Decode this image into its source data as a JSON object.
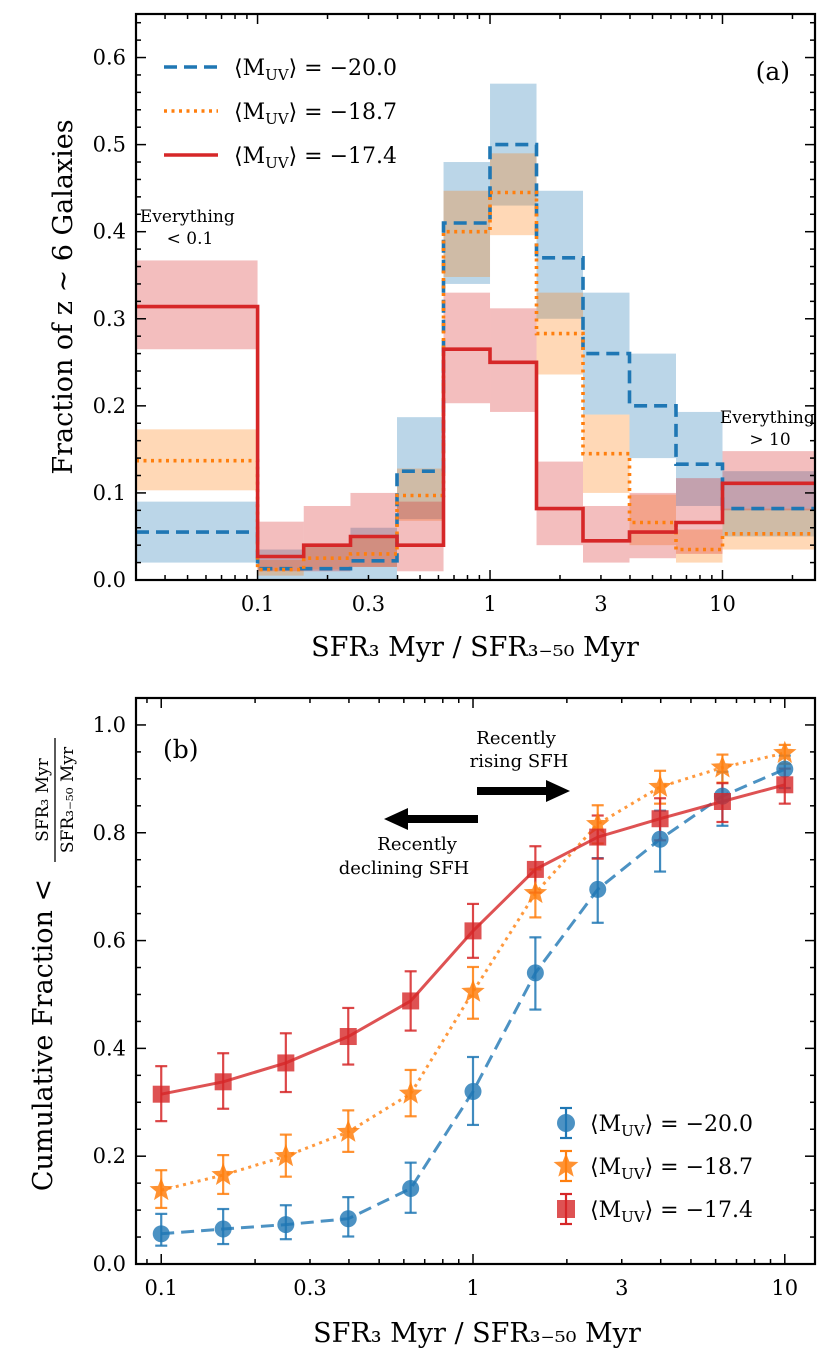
{
  "colors": {
    "blue": "#1f77b4",
    "orange": "#ff7f0e",
    "red": "#d62728"
  },
  "chart_data": [
    {
      "type": "bar",
      "subtype": "step-histogram-with-error-bands",
      "panel_label": "(a)",
      "xlabel": "SFR₃ Myr / SFR₃₋₅₀ Myr",
      "ylabel": "Fraction of z ∼ 6 Galaxies",
      "xscale": "log",
      "xlim": [
        0.03,
        25
      ],
      "ylim": [
        0,
        0.65
      ],
      "xticks": [
        0.1,
        0.3,
        1,
        3,
        10
      ],
      "xtick_labels": [
        "0.1",
        "0.3",
        "1",
        "3",
        "10"
      ],
      "yticks": [
        0.0,
        0.1,
        0.2,
        0.3,
        0.4,
        0.5,
        0.6
      ],
      "ytick_labels": [
        "0.0",
        "0.1",
        "0.2",
        "0.3",
        "0.4",
        "0.5",
        "0.6"
      ],
      "bin_edges": [
        0.03,
        0.1,
        0.158,
        0.251,
        0.398,
        0.631,
        1.0,
        1.585,
        2.512,
        3.981,
        6.31,
        10.0,
        25
      ],
      "series": [
        {
          "name": "⟨M_UV⟩ = −20.0",
          "legend_main": "⟨M",
          "legend_sub": "UV",
          "legend_tail": "⟩ = −20.0",
          "color": "#1f77b4",
          "linestyle": "dashed",
          "values": [
            0.055,
            0.013,
            0.013,
            0.022,
            0.125,
            0.41,
            0.5,
            0.37,
            0.26,
            0.2,
            0.133,
            0.082
          ],
          "lower": [
            0.02,
            0.0,
            0.0,
            0.0,
            0.07,
            0.34,
            0.43,
            0.3,
            0.19,
            0.14,
            0.085,
            0.05
          ],
          "upper": [
            0.09,
            0.035,
            0.04,
            0.06,
            0.187,
            0.48,
            0.57,
            0.447,
            0.33,
            0.26,
            0.193,
            0.125
          ]
        },
        {
          "name": "⟨M_UV⟩ = −18.7",
          "legend_main": "⟨M",
          "legend_sub": "UV",
          "legend_tail": "⟩ = −18.7",
          "color": "#ff7f0e",
          "linestyle": "dotted",
          "values": [
            0.137,
            0.012,
            0.025,
            0.03,
            0.097,
            0.4,
            0.445,
            0.283,
            0.145,
            0.066,
            0.035,
            0.053
          ],
          "lower": [
            0.103,
            0.005,
            0.012,
            0.015,
            0.068,
            0.348,
            0.396,
            0.236,
            0.1,
            0.04,
            0.02,
            0.035
          ],
          "upper": [
            0.173,
            0.023,
            0.04,
            0.05,
            0.128,
            0.447,
            0.49,
            0.33,
            0.19,
            0.098,
            0.058,
            0.082
          ]
        },
        {
          "name": "⟨M_UV⟩ = −17.4",
          "legend_main": "⟨M",
          "legend_sub": "UV",
          "legend_tail": "⟩ = −17.4",
          "color": "#d62728",
          "linestyle": "solid",
          "values": [
            0.314,
            0.027,
            0.04,
            0.05,
            0.04,
            0.265,
            0.25,
            0.082,
            0.045,
            0.055,
            0.066,
            0.111
          ],
          "lower": [
            0.265,
            0.01,
            0.01,
            0.015,
            0.01,
            0.203,
            0.193,
            0.04,
            0.02,
            0.025,
            0.03,
            0.08
          ],
          "upper": [
            0.367,
            0.067,
            0.085,
            0.1,
            0.09,
            0.33,
            0.312,
            0.136,
            0.085,
            0.1,
            0.117,
            0.148
          ]
        }
      ],
      "annotations": [
        {
          "id": "low",
          "lines": [
            "Everything",
            "< 0.1"
          ]
        },
        {
          "id": "high",
          "lines": [
            "Everything",
            "> 10"
          ]
        }
      ]
    },
    {
      "type": "line",
      "subtype": "cumulative-with-error-bars",
      "panel_label": "(b)",
      "xlabel": "SFR₃ Myr / SFR₃₋₅₀ Myr",
      "ylabel_prefix": "Cumulative Fraction <",
      "ylabel_num": "SFR₃ Myr",
      "ylabel_den": "SFR₃₋₅₀ Myr",
      "xscale": "log",
      "xlim": [
        0.083,
        12.5
      ],
      "ylim": [
        0,
        1.05
      ],
      "xticks": [
        0.1,
        0.3,
        1,
        3,
        10
      ],
      "xtick_labels": [
        "0.1",
        "0.3",
        "1",
        "3",
        "10"
      ],
      "yticks": [
        0.0,
        0.2,
        0.4,
        0.6,
        0.8,
        1.0
      ],
      "ytick_labels": [
        "0.0",
        "0.2",
        "0.4",
        "0.6",
        "0.8",
        "1.0"
      ],
      "series": [
        {
          "name": "⟨M_UV⟩ = −20.0",
          "legend_main": "⟨M",
          "legend_sub": "UV",
          "legend_tail": "⟩ = −20.0",
          "color": "#1f77b4",
          "linestyle": "dashed",
          "marker": "circle",
          "x": [
            0.1,
            0.158,
            0.251,
            0.398,
            0.631,
            1.0,
            1.585,
            2.512,
            3.981,
            6.31,
            10.0
          ],
          "y": [
            0.056,
            0.065,
            0.073,
            0.084,
            0.14,
            0.32,
            0.54,
            0.695,
            0.788,
            0.868,
            0.918
          ],
          "yerr_low": [
            0.022,
            0.028,
            0.027,
            0.033,
            0.045,
            0.062,
            0.068,
            0.062,
            0.06,
            0.055,
            0.035
          ],
          "yerr_high": [
            0.037,
            0.037,
            0.036,
            0.04,
            0.048,
            0.064,
            0.066,
            0.058,
            0.053,
            0.045,
            0.025
          ]
        },
        {
          "name": "⟨M_UV⟩ = −18.7",
          "legend_main": "⟨M",
          "legend_sub": "UV",
          "legend_tail": "⟩ = −18.7",
          "color": "#ff7f0e",
          "linestyle": "dotted",
          "marker": "star",
          "x": [
            0.1,
            0.158,
            0.251,
            0.398,
            0.631,
            1.0,
            1.585,
            2.512,
            3.981,
            6.31,
            10.0
          ],
          "y": [
            0.137,
            0.165,
            0.2,
            0.245,
            0.316,
            0.505,
            0.688,
            0.816,
            0.885,
            0.921,
            0.948
          ],
          "yerr_low": [
            0.033,
            0.035,
            0.038,
            0.037,
            0.042,
            0.05,
            0.045,
            0.036,
            0.031,
            0.028,
            0.02
          ],
          "yerr_high": [
            0.037,
            0.037,
            0.04,
            0.04,
            0.044,
            0.046,
            0.044,
            0.035,
            0.03,
            0.024,
            0.015
          ]
        },
        {
          "name": "⟨M_UV⟩ = −17.4",
          "legend_main": "⟨M",
          "legend_sub": "UV",
          "legend_tail": "⟩ = −17.4",
          "color": "#d62728",
          "linestyle": "solid",
          "marker": "square",
          "x": [
            0.1,
            0.158,
            0.251,
            0.398,
            0.631,
            1.0,
            1.585,
            2.512,
            3.981,
            6.31,
            10.0
          ],
          "y": [
            0.315,
            0.338,
            0.373,
            0.422,
            0.488,
            0.618,
            0.732,
            0.792,
            0.826,
            0.858,
            0.889
          ],
          "yerr_low": [
            0.05,
            0.05,
            0.054,
            0.052,
            0.055,
            0.05,
            0.043,
            0.04,
            0.04,
            0.038,
            0.035
          ],
          "yerr_high": [
            0.052,
            0.053,
            0.055,
            0.053,
            0.055,
            0.05,
            0.043,
            0.04,
            0.038,
            0.034,
            0.03
          ]
        }
      ],
      "annotations": [
        {
          "id": "rising",
          "lines": [
            "Recently",
            "rising SFH"
          ]
        },
        {
          "id": "declining",
          "lines": [
            "Recently",
            "declining SFH"
          ]
        }
      ]
    }
  ]
}
